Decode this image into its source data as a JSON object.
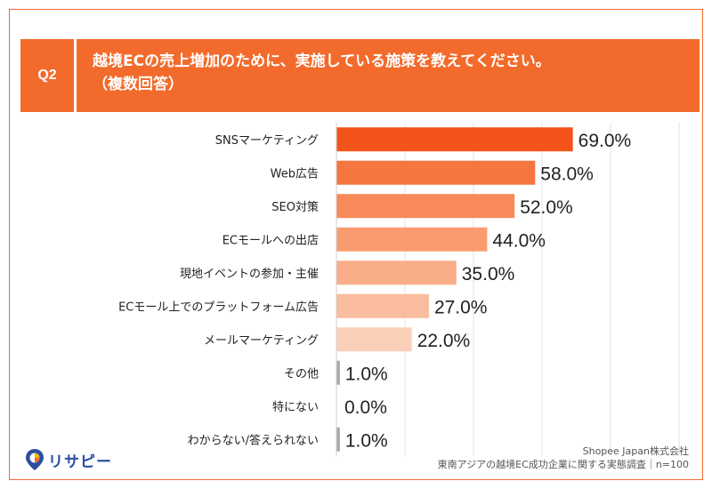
{
  "question": {
    "badge": "Q2",
    "line1": "越境ECの売上増加のために、実施している施策を教えてください。",
    "line2": "（複数回答）"
  },
  "chart_data": {
    "type": "bar",
    "orientation": "horizontal",
    "categories": [
      "SNSマーケティング",
      "Web広告",
      "SEO対策",
      "ECモールへの出店",
      "現地イベントの参加・主催",
      "ECモール上でのプラットフォーム広告",
      "メールマーケティング",
      "その他",
      "特にない",
      "わからない/答えられない"
    ],
    "values": [
      69.0,
      58.0,
      52.0,
      44.0,
      35.0,
      27.0,
      22.0,
      1.0,
      0.0,
      1.0
    ],
    "value_labels": [
      "69.0%",
      "58.0%",
      "52.0%",
      "44.0%",
      "35.0%",
      "27.0%",
      "22.0%",
      "1.0%",
      "0.0%",
      "1.0%"
    ],
    "colors": [
      "#f4541a",
      "#f5763f",
      "#f78a58",
      "#f89c70",
      "#f9ad88",
      "#fabc9e",
      "#fbd0b9",
      "#aaaaaa",
      "#aaaaaa",
      "#aaaaaa"
    ],
    "xlim": [
      0,
      100
    ],
    "grid": true
  },
  "footer": {
    "source_line1": "Shopee Japan株式会社",
    "source_line2": "東南アジアの越境EC成功企業に関する実態調査｜n=100"
  },
  "logo": {
    "text": "リサピー"
  }
}
